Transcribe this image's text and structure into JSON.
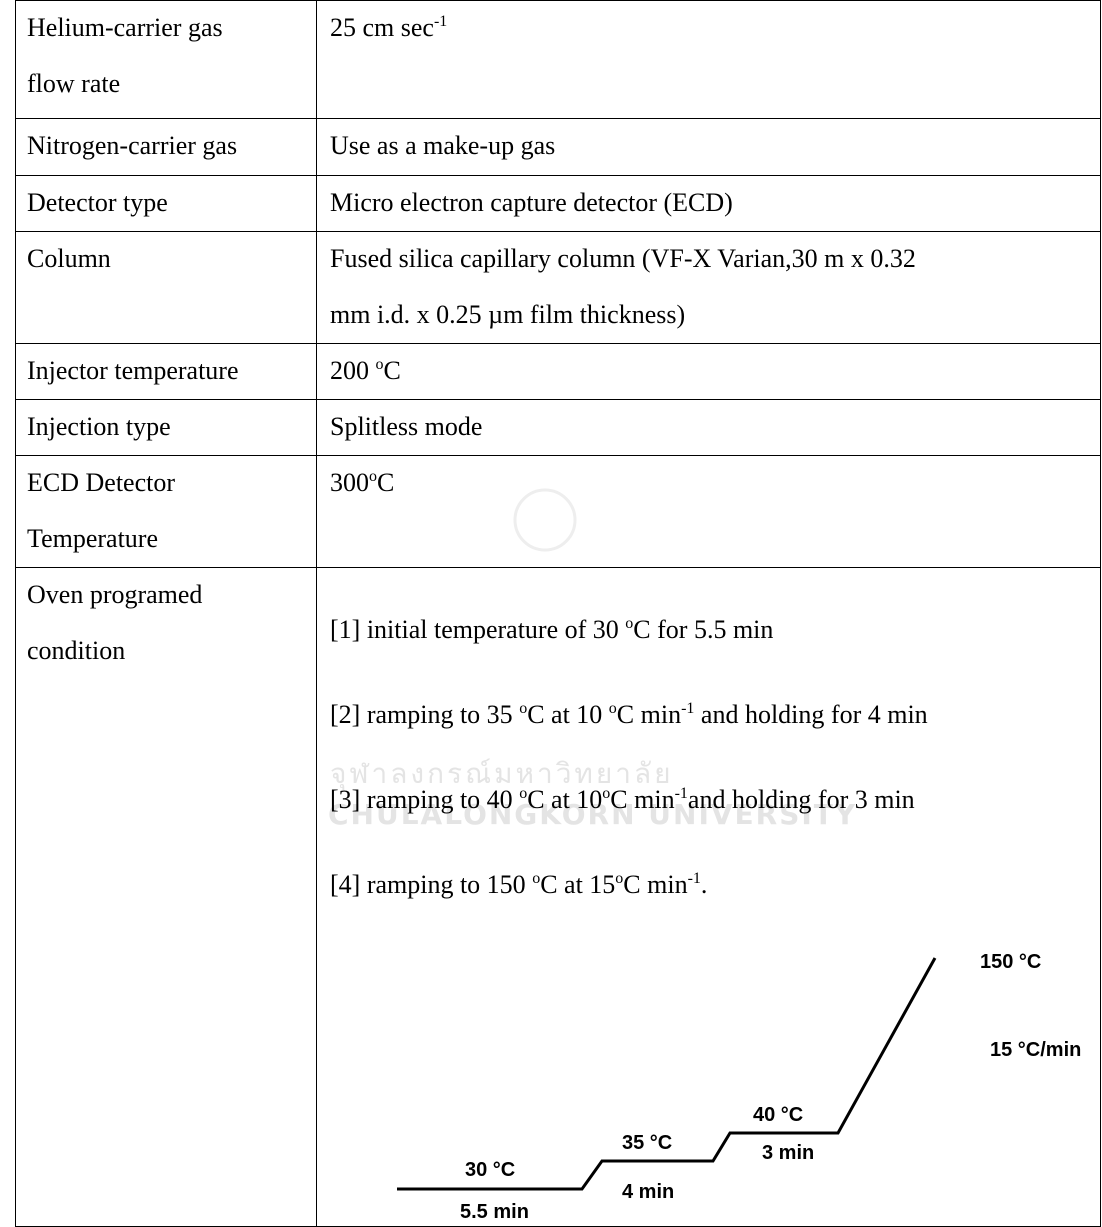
{
  "table": {
    "rows": [
      {
        "label": [
          [
            {
              "text": "Helium-carrier gas"
            }
          ],
          [
            {
              "text": "flow rate"
            }
          ]
        ],
        "value": [
          [
            {
              "text": "25 cm sec"
            },
            {
              "sup": "-1"
            }
          ]
        ]
      },
      {
        "label": [
          [
            {
              "text": "Nitrogen-carrier gas"
            }
          ]
        ],
        "value": [
          [
            {
              "text": "Use as a make-up gas"
            }
          ]
        ]
      },
      {
        "label": [
          [
            {
              "text": "Detector type"
            }
          ]
        ],
        "value": [
          [
            {
              "text": "Micro electron capture detector (ECD)"
            }
          ]
        ]
      },
      {
        "label": [
          [
            {
              "text": "Column"
            }
          ]
        ],
        "value": [
          [
            {
              "text": "Fused silica capillary column (VF-X Varian,30 m x 0.32"
            }
          ],
          [
            {
              "text": "mm i.d. x 0.25 µm film thickness)"
            }
          ]
        ]
      },
      {
        "label": [
          [
            {
              "text": "Injector temperature"
            }
          ]
        ],
        "value": [
          [
            {
              "text": "200 "
            },
            {
              "sup": "o"
            },
            {
              "text": "C"
            }
          ]
        ]
      },
      {
        "label": [
          [
            {
              "text": "Injection type"
            }
          ]
        ],
        "value": [
          [
            {
              "text": "Splitless mode"
            }
          ]
        ]
      },
      {
        "label": [
          [
            {
              "text": "ECD Detector"
            }
          ],
          [
            {
              "text": "Temperature"
            }
          ]
        ],
        "value": [
          [
            {
              "text": "300"
            },
            {
              "sup": "o"
            },
            {
              "text": "C"
            }
          ]
        ]
      },
      {
        "label": [
          [
            {
              "text": "Oven programed"
            }
          ],
          [
            {
              "text": "condition"
            }
          ]
        ],
        "value": [
          [
            {
              "text": "[1] initial temperature of 30 "
            },
            {
              "sup": "o"
            },
            {
              "text": "C for 5.5 min"
            }
          ],
          [
            {
              "text": "[2] ramping to 35 "
            },
            {
              "sup": "o"
            },
            {
              "text": "C at 10 "
            },
            {
              "sup": "o"
            },
            {
              "text": "C min"
            },
            {
              "sup": "-1"
            },
            {
              "text": " and holding for 4 min"
            }
          ],
          [
            {
              "text": "[3] ramping to 40 "
            },
            {
              "sup": "o"
            },
            {
              "text": "C at 10"
            },
            {
              "sup": "o"
            },
            {
              "text": "C min"
            },
            {
              "sup": "-1"
            },
            {
              "text": "and holding for 3 min"
            }
          ],
          [
            {
              "text": "[4] ramping to 150 "
            },
            {
              "sup": "o"
            },
            {
              "text": "C at 15"
            },
            {
              "sup": "o"
            },
            {
              "text": "C min"
            },
            {
              "sup": "-1"
            },
            {
              "text": "."
            }
          ]
        ]
      }
    ]
  },
  "watermark": {
    "thai": "จุฬาลงกรณ์มหาวิทยาลัย",
    "english": "CHULALONGKORN UNIVERSITY"
  },
  "diagram": {
    "labels": [
      "30 °C",
      "5.5 min",
      "35 °C",
      "4 min",
      "40 °C",
      "3 min",
      "150 °C",
      "15 °C/min"
    ]
  }
}
